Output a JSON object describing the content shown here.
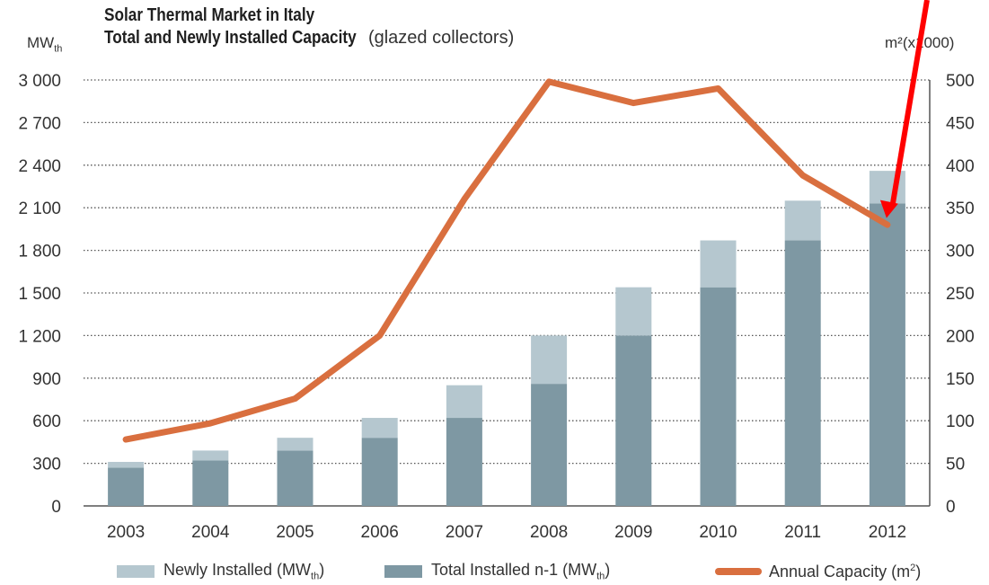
{
  "chart_data": {
    "type": "bar",
    "title": "Solar Thermal Market in Italy",
    "subtitle_bold": "Total and Newly Installed Capacity",
    "subtitle_rest": " (glazed collectors)",
    "ylabel_left": "MW",
    "ylabel_left_sub": "th",
    "ylabel_right": "m²(x1000)",
    "categories": [
      "2003",
      "2004",
      "2005",
      "2006",
      "2007",
      "2008",
      "2009",
      "2010",
      "2011",
      "2012"
    ],
    "ylim_left": [
      0,
      3000
    ],
    "ylim_right": [
      0,
      500
    ],
    "yticks_left": [
      "3 000",
      "2 700",
      "2 400",
      "2 100",
      "1 800",
      "1 500",
      "1 200",
      "900",
      "600",
      "300",
      "0"
    ],
    "yticks_right": [
      "500",
      "450",
      "400",
      "350",
      "300",
      "250",
      "200",
      "150",
      "100",
      "50",
      "0"
    ],
    "grid": true,
    "stacked": true,
    "series": [
      {
        "name": "Total Installed n-1 (MW",
        "name_sub": "th",
        "name_suffix": ")",
        "axis": "left",
        "kind": "bar",
        "color": "#7e98a3",
        "values": [
          270,
          320,
          390,
          480,
          620,
          860,
          1200,
          1540,
          1870,
          2130
        ]
      },
      {
        "name": "Newly Installed (MW",
        "name_sub": "th",
        "name_suffix": ")",
        "axis": "left",
        "kind": "bar",
        "color": "#b5c7cf",
        "values": [
          40,
          70,
          90,
          140,
          230,
          340,
          340,
          330,
          280,
          230
        ]
      },
      {
        "name": "Annual Capacity (m",
        "name_sup": "2",
        "name_suffix": ")",
        "axis": "right",
        "kind": "line",
        "color": "#d96f3f",
        "values": [
          78,
          97,
          126,
          200,
          360,
          498,
          473,
          490,
          388,
          330
        ]
      }
    ],
    "annotation": {
      "type": "arrow",
      "color": "#ff0000",
      "target_category": "2012",
      "target_value_right": 340
    }
  }
}
